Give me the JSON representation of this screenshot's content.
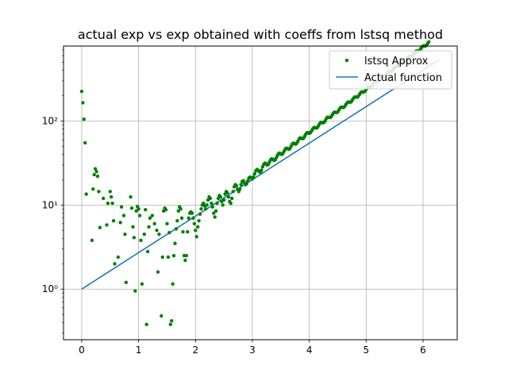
{
  "chart_data": {
    "type": "scatter",
    "title": "actual exp vs exp obtained with coeffs from lstsq method",
    "xlabel": "",
    "ylabel": "",
    "xlim": [
      -0.32,
      6.6
    ],
    "ylim": [
      0.25,
      780
    ],
    "yscale": "log",
    "grid": true,
    "legend_position": "top-right",
    "x_ticks": [
      0,
      1,
      2,
      3,
      4,
      5,
      6
    ],
    "x_tick_labels": [
      "0",
      "1",
      "2",
      "3",
      "4",
      "5",
      "6"
    ],
    "y_ticks": [
      1,
      10,
      100
    ],
    "y_tick_labels": [
      "10⁰",
      "10¹",
      "10²"
    ],
    "series": [
      {
        "name": "lstsq Approx",
        "kind": "scatter",
        "color": "#008000",
        "points": [
          [
            0.0,
            225
          ],
          [
            0.02,
            165
          ],
          [
            0.04,
            105
          ],
          [
            0.06,
            55
          ],
          [
            0.08,
            13.5
          ],
          [
            0.18,
            3.8
          ],
          [
            0.2,
            15.5
          ],
          [
            0.22,
            23
          ],
          [
            0.24,
            27
          ],
          [
            0.26,
            25
          ],
          [
            0.28,
            22
          ],
          [
            0.3,
            14.5
          ],
          [
            0.32,
            5.4
          ],
          [
            0.38,
            12
          ],
          [
            0.44,
            5.8
          ],
          [
            0.46,
            10.5
          ],
          [
            0.5,
            14.5
          ],
          [
            0.52,
            12.5
          ],
          [
            0.54,
            10.5
          ],
          [
            0.56,
            6.5
          ],
          [
            0.58,
            2.0
          ],
          [
            0.64,
            2.4
          ],
          [
            0.68,
            6.2
          ],
          [
            0.7,
            9.5
          ],
          [
            0.74,
            7.5
          ],
          [
            0.76,
            4.5
          ],
          [
            0.78,
            1.2
          ],
          [
            0.86,
            12.5
          ],
          [
            0.88,
            9.2
          ],
          [
            0.9,
            5.5
          ],
          [
            0.92,
            4.1
          ],
          [
            0.94,
            0.95
          ],
          [
            0.96,
            8.5
          ],
          [
            0.98,
            9.6
          ],
          [
            1.0,
            9.0
          ],
          [
            1.02,
            7.5
          ],
          [
            1.04,
            3.8
          ],
          [
            1.06,
            1.15
          ],
          [
            1.1,
            4.5
          ],
          [
            1.12,
            8.8
          ],
          [
            1.14,
            0.38
          ],
          [
            1.16,
            2.8
          ],
          [
            1.18,
            5.5
          ],
          [
            1.2,
            7.0
          ],
          [
            1.24,
            7.5
          ],
          [
            1.28,
            6.0
          ],
          [
            1.32,
            5.0
          ],
          [
            1.34,
            1.6
          ],
          [
            1.36,
            4.5
          ],
          [
            1.4,
            0.48
          ],
          [
            1.42,
            2.4
          ],
          [
            1.44,
            8.5
          ],
          [
            1.46,
            9.2
          ],
          [
            1.48,
            8.8
          ],
          [
            1.5,
            6.0
          ],
          [
            1.52,
            2.4
          ],
          [
            1.54,
            4.7
          ],
          [
            1.56,
            0.38
          ],
          [
            1.58,
            0.42
          ],
          [
            1.6,
            1.15
          ],
          [
            1.62,
            2.5
          ],
          [
            1.64,
            3.5
          ],
          [
            1.66,
            5.2
          ],
          [
            1.68,
            6.5
          ],
          [
            1.7,
            8.5
          ],
          [
            1.72,
            9.5
          ],
          [
            1.74,
            9.0
          ],
          [
            1.76,
            7.0
          ],
          [
            1.78,
            4.8
          ],
          [
            1.8,
            2.5
          ],
          [
            1.82,
            2.2
          ],
          [
            1.84,
            2.5
          ],
          [
            1.86,
            4.8
          ],
          [
            1.88,
            7.0
          ],
          [
            1.9,
            8.0
          ],
          [
            1.92,
            8.3
          ],
          [
            1.94,
            8.0
          ],
          [
            1.96,
            7.0
          ],
          [
            1.98,
            6.0
          ],
          [
            2.0,
            5.0
          ],
          [
            2.02,
            4.2
          ],
          [
            2.04,
            5.5
          ],
          [
            2.06,
            6.5
          ],
          [
            2.08,
            7.8
          ],
          [
            2.1,
            9.0
          ],
          [
            2.12,
            10.0
          ],
          [
            2.14,
            10.5
          ],
          [
            2.16,
            9.8
          ],
          [
            2.18,
            9.0
          ],
          [
            2.2,
            10.0
          ],
          [
            2.22,
            11.5
          ],
          [
            2.24,
            12.5
          ],
          [
            2.26,
            12.0
          ],
          [
            2.28,
            10.5
          ],
          [
            2.3,
            9.5
          ],
          [
            2.32,
            8.0
          ],
          [
            2.34,
            7.2
          ],
          [
            2.36,
            8.5
          ],
          [
            2.38,
            10.5
          ],
          [
            2.4,
            12.0
          ],
          [
            2.42,
            13.0
          ],
          [
            2.44,
            12.5
          ],
          [
            2.46,
            11.0
          ],
          [
            2.48,
            10.0
          ],
          [
            2.5,
            11.5
          ],
          [
            2.52,
            13.5
          ],
          [
            2.54,
            14.5
          ],
          [
            2.56,
            14.0
          ],
          [
            2.58,
            12.5
          ],
          [
            2.6,
            11.0
          ],
          [
            2.62,
            10.5
          ],
          [
            2.64,
            12.0
          ],
          [
            2.66,
            14.5
          ],
          [
            2.68,
            16.5
          ],
          [
            2.7,
            17.5
          ],
          [
            2.72,
            17.0
          ],
          [
            2.74,
            15.5
          ],
          [
            2.76,
            14.5
          ],
          [
            2.78,
            15.5
          ],
          [
            2.8,
            17.5
          ],
          [
            2.82,
            19.0
          ],
          [
            2.84,
            19.5
          ],
          [
            2.86,
            18.5
          ],
          [
            2.88,
            17.5
          ],
          [
            2.9,
            18.0
          ],
          [
            2.92,
            19.5
          ],
          [
            2.94,
            21.0
          ],
          [
            2.96,
            21.5
          ],
          [
            2.98,
            21.0
          ],
          [
            3.0,
            20.5
          ],
          [
            3.02,
            21.5
          ],
          [
            3.04,
            23.5
          ],
          [
            3.06,
            25.5
          ],
          [
            3.08,
            26.5
          ],
          [
            3.1,
            26.0
          ],
          [
            3.12,
            25.0
          ],
          [
            3.14,
            24.5
          ],
          [
            3.16,
            26.0
          ],
          [
            3.18,
            28.5
          ],
          [
            3.2,
            30.5
          ],
          [
            3.22,
            31.5
          ],
          [
            3.24,
            31.0
          ],
          [
            3.26,
            30.0
          ],
          [
            3.28,
            30.5
          ],
          [
            3.3,
            32.5
          ],
          [
            3.32,
            34.5
          ],
          [
            3.34,
            35.5
          ],
          [
            3.36,
            35.0
          ],
          [
            3.38,
            34.0
          ],
          [
            3.4,
            34.5
          ],
          [
            3.42,
            36.5
          ],
          [
            3.44,
            39.0
          ],
          [
            3.46,
            41.0
          ],
          [
            3.48,
            41.5
          ],
          [
            3.5,
            40.5
          ],
          [
            3.52,
            40.0
          ],
          [
            3.54,
            41.5
          ],
          [
            3.56,
            44.0
          ],
          [
            3.58,
            46.5
          ],
          [
            3.6,
            47.5
          ],
          [
            3.62,
            47.0
          ],
          [
            3.64,
            46.0
          ],
          [
            3.66,
            47.0
          ],
          [
            3.68,
            50.0
          ],
          [
            3.7,
            53.0
          ],
          [
            3.72,
            54.5
          ],
          [
            3.74,
            54.0
          ],
          [
            3.76,
            53.0
          ],
          [
            3.78,
            54.5
          ],
          [
            3.8,
            57.5
          ],
          [
            3.82,
            61.0
          ],
          [
            3.84,
            63.0
          ],
          [
            3.86,
            62.5
          ],
          [
            3.88,
            61.5
          ],
          [
            3.9,
            62.5
          ],
          [
            3.92,
            66.0
          ],
          [
            3.94,
            70.0
          ],
          [
            3.96,
            72.5
          ],
          [
            3.98,
            72.5
          ],
          [
            4.0,
            71.5
          ],
          [
            4.02,
            72.5
          ],
          [
            4.04,
            76.0
          ],
          [
            4.06,
            80.5
          ],
          [
            4.08,
            83.5
          ],
          [
            4.1,
            83.5
          ],
          [
            4.12,
            82.5
          ],
          [
            4.14,
            83.5
          ],
          [
            4.16,
            87.5
          ],
          [
            4.18,
            92.5
          ],
          [
            4.2,
            96.0
          ],
          [
            4.22,
            96.0
          ],
          [
            4.24,
            95.0
          ],
          [
            4.26,
            96.5
          ],
          [
            4.28,
            101
          ],
          [
            4.3,
            107
          ],
          [
            4.32,
            111
          ],
          [
            4.34,
            111
          ],
          [
            4.36,
            110
          ],
          [
            4.38,
            111
          ],
          [
            4.4,
            117
          ],
          [
            4.42,
            123
          ],
          [
            4.44,
            127
          ],
          [
            4.46,
            127
          ],
          [
            4.48,
            126
          ],
          [
            4.5,
            128
          ],
          [
            4.52,
            135
          ],
          [
            4.54,
            142
          ],
          [
            4.56,
            146
          ],
          [
            4.58,
            146
          ],
          [
            4.6,
            145
          ],
          [
            4.62,
            148
          ],
          [
            4.64,
            156
          ],
          [
            4.66,
            163
          ],
          [
            4.68,
            168
          ],
          [
            4.7,
            168
          ],
          [
            4.72,
            167
          ],
          [
            4.74,
            170
          ],
          [
            4.76,
            179
          ],
          [
            4.78,
            188
          ],
          [
            4.8,
            193
          ],
          [
            4.82,
            193
          ],
          [
            4.84,
            192
          ],
          [
            4.86,
            196
          ],
          [
            4.88,
            206
          ],
          [
            4.9,
            216
          ],
          [
            4.92,
            222
          ],
          [
            4.94,
            222
          ],
          [
            4.96,
            221
          ],
          [
            4.98,
            226
          ],
          [
            5.0,
            237
          ],
          [
            5.02,
            248
          ],
          [
            5.04,
            255
          ],
          [
            5.06,
            255
          ],
          [
            5.08,
            254
          ],
          [
            5.1,
            260
          ],
          [
            5.12,
            273
          ],
          [
            5.14,
            286
          ],
          [
            5.16,
            293
          ],
          [
            5.18,
            294
          ],
          [
            5.2,
            293
          ],
          [
            5.22,
            299
          ],
          [
            5.24,
            314
          ],
          [
            5.26,
            328
          ],
          [
            5.28,
            337
          ],
          [
            5.3,
            338
          ],
          [
            5.32,
            337
          ],
          [
            5.34,
            344
          ],
          [
            5.36,
            361
          ],
          [
            5.38,
            378
          ],
          [
            5.4,
            388
          ],
          [
            5.42,
            389
          ],
          [
            5.44,
            387
          ],
          [
            5.46,
            396
          ],
          [
            5.48,
            415
          ],
          [
            5.5,
            434
          ],
          [
            5.52,
            446
          ],
          [
            5.54,
            447
          ],
          [
            5.56,
            445
          ],
          [
            5.58,
            455
          ],
          [
            5.6,
            478
          ],
          [
            5.62,
            500
          ],
          [
            5.64,
            513
          ],
          [
            5.66,
            514
          ],
          [
            5.68,
            512
          ],
          [
            5.7,
            524
          ],
          [
            5.72,
            549
          ],
          [
            5.74,
            575
          ],
          [
            5.76,
            590
          ],
          [
            5.78,
            591
          ],
          [
            5.8,
            589
          ],
          [
            5.82,
            602
          ],
          [
            5.84,
            632
          ],
          [
            5.86,
            661
          ],
          [
            5.88,
            679
          ],
          [
            5.9,
            680
          ],
          [
            5.92,
            678
          ],
          [
            5.94,
            693
          ],
          [
            5.96,
            727
          ],
          [
            5.98,
            760
          ],
          [
            6.0,
            780
          ],
          [
            6.02,
            782
          ],
          [
            6.04,
            780
          ],
          [
            6.06,
            797
          ],
          [
            6.08,
            836
          ],
          [
            6.1,
            874
          ],
          [
            6.12,
            897
          ],
          [
            6.14,
            899
          ],
          [
            6.16,
            897
          ],
          [
            6.18,
            917
          ],
          [
            6.2,
            961
          ],
          [
            6.22,
            1005
          ],
          [
            6.24,
            1032
          ],
          [
            6.26,
            1034
          ],
          [
            6.28,
            1032
          ]
        ]
      },
      {
        "name": "Actual function",
        "kind": "line",
        "color": "#1f77b4",
        "x_range": [
          0,
          6.28
        ],
        "expression": "exp(x)"
      }
    ]
  }
}
